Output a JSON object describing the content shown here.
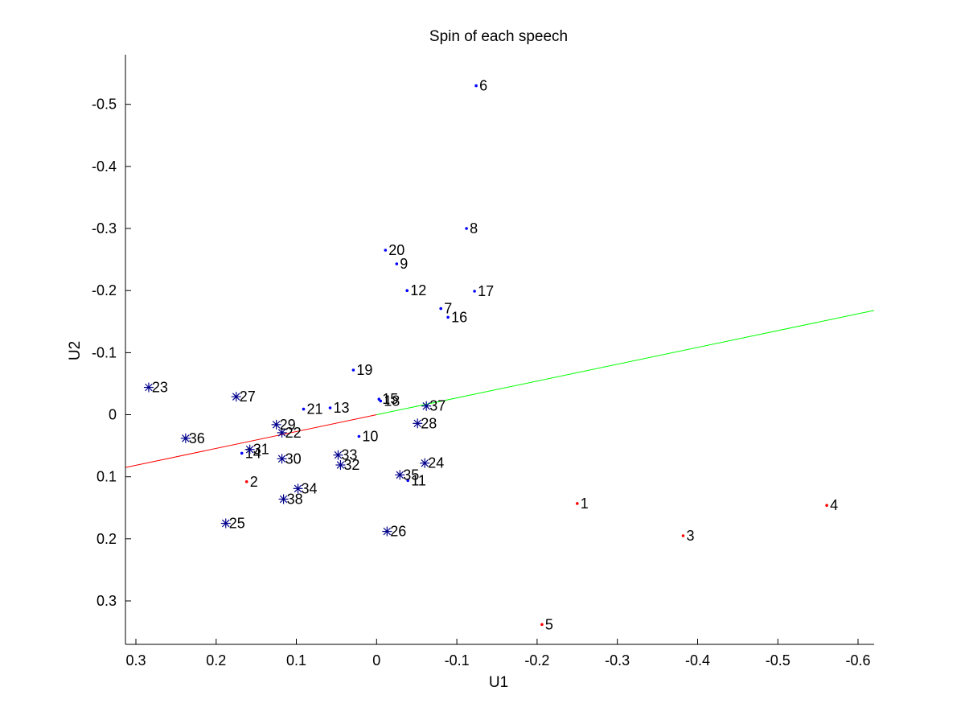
{
  "chart_data": {
    "type": "scatter",
    "title": "Spin of each speech",
    "xlabel": "U1",
    "ylabel": "U2",
    "x_reversed": true,
    "y_reversed": true,
    "xlim": [
      -0.62,
      0.313
    ],
    "ylim": [
      -0.58,
      0.37
    ],
    "xticks": [
      0.3,
      0.2,
      0.1,
      0,
      -0.1,
      -0.2,
      -0.3,
      -0.4,
      -0.5,
      -0.6
    ],
    "xtick_labels": [
      "0.3",
      "0.2",
      "0.1",
      "0",
      "-0.1",
      "-0.2",
      "-0.3",
      "-0.4",
      "-0.5",
      "-0.6"
    ],
    "yticks": [
      -0.5,
      -0.4,
      -0.3,
      -0.2,
      -0.1,
      0,
      0.1,
      0.2,
      0.3
    ],
    "ytick_labels": [
      "-0.5",
      "-0.4",
      "-0.3",
      "-0.2",
      "-0.1",
      "0",
      "0.1",
      "0.2",
      "0.3"
    ],
    "grid": false,
    "colors": {
      "red": "#ff0000",
      "blue": "#0000ff",
      "star": "#00008b",
      "green_line": "#00ff00",
      "red_line": "#ff0000",
      "axis": "#000000"
    },
    "points": [
      {
        "label": "1",
        "x": -0.25,
        "y": 0.143,
        "marker": "dot",
        "color": "red"
      },
      {
        "label": "2",
        "x": 0.162,
        "y": 0.108,
        "marker": "dot",
        "color": "red"
      },
      {
        "label": "3",
        "x": -0.382,
        "y": 0.195,
        "marker": "dot",
        "color": "red"
      },
      {
        "label": "4",
        "x": -0.561,
        "y": 0.146,
        "marker": "dot",
        "color": "red"
      },
      {
        "label": "5",
        "x": -0.206,
        "y": 0.338,
        "marker": "dot",
        "color": "red"
      },
      {
        "label": "6",
        "x": -0.124,
        "y": -0.53,
        "marker": "dot",
        "color": "blue"
      },
      {
        "label": "7",
        "x": -0.08,
        "y": -0.171,
        "marker": "dot",
        "color": "blue"
      },
      {
        "label": "8",
        "x": -0.112,
        "y": -0.3,
        "marker": "dot",
        "color": "blue"
      },
      {
        "label": "9",
        "x": -0.025,
        "y": -0.243,
        "marker": "dot",
        "color": "blue"
      },
      {
        "label": "10",
        "x": 0.022,
        "y": 0.035,
        "marker": "dot",
        "color": "blue"
      },
      {
        "label": "11",
        "x": -0.039,
        "y": 0.106,
        "marker": "dot",
        "color": "blue"
      },
      {
        "label": "12",
        "x": -0.038,
        "y": -0.2,
        "marker": "dot",
        "color": "blue"
      },
      {
        "label": "13",
        "x": 0.058,
        "y": -0.011,
        "marker": "dot",
        "color": "blue"
      },
      {
        "label": "14",
        "x": 0.168,
        "y": 0.062,
        "marker": "dot",
        "color": "blue"
      },
      {
        "label": "15",
        "x": -0.003,
        "y": -0.025,
        "marker": "dot",
        "color": "blue"
      },
      {
        "label": "16",
        "x": -0.089,
        "y": -0.157,
        "marker": "dot",
        "color": "blue"
      },
      {
        "label": "17",
        "x": -0.122,
        "y": -0.199,
        "marker": "dot",
        "color": "blue"
      },
      {
        "label": "18",
        "x": -0.005,
        "y": -0.022,
        "marker": "dot",
        "color": "blue"
      },
      {
        "label": "19",
        "x": 0.029,
        "y": -0.072,
        "marker": "dot",
        "color": "blue"
      },
      {
        "label": "20",
        "x": -0.011,
        "y": -0.265,
        "marker": "dot",
        "color": "blue"
      },
      {
        "label": "21",
        "x": 0.091,
        "y": -0.009,
        "marker": "dot",
        "color": "blue"
      },
      {
        "label": "22",
        "x": 0.118,
        "y": 0.029,
        "marker": "star",
        "color": "star"
      },
      {
        "label": "23",
        "x": 0.284,
        "y": -0.044,
        "marker": "star",
        "color": "star"
      },
      {
        "label": "24",
        "x": -0.06,
        "y": 0.078,
        "marker": "star",
        "color": "star"
      },
      {
        "label": "25",
        "x": 0.188,
        "y": 0.175,
        "marker": "star",
        "color": "star"
      },
      {
        "label": "26",
        "x": -0.013,
        "y": 0.188,
        "marker": "star",
        "color": "star"
      },
      {
        "label": "27",
        "x": 0.175,
        "y": -0.029,
        "marker": "star",
        "color": "star"
      },
      {
        "label": "28",
        "x": -0.051,
        "y": 0.014,
        "marker": "star",
        "color": "star"
      },
      {
        "label": "29",
        "x": 0.125,
        "y": 0.016,
        "marker": "star",
        "color": "star"
      },
      {
        "label": "30",
        "x": 0.118,
        "y": 0.071,
        "marker": "star",
        "color": "star"
      },
      {
        "label": "31",
        "x": 0.158,
        "y": 0.056,
        "marker": "star",
        "color": "star"
      },
      {
        "label": "32",
        "x": 0.045,
        "y": 0.081,
        "marker": "star",
        "color": "star"
      },
      {
        "label": "33",
        "x": 0.048,
        "y": 0.065,
        "marker": "star",
        "color": "star"
      },
      {
        "label": "34",
        "x": 0.098,
        "y": 0.119,
        "marker": "star",
        "color": "star"
      },
      {
        "label": "35",
        "x": -0.029,
        "y": 0.097,
        "marker": "star",
        "color": "star"
      },
      {
        "label": "36",
        "x": 0.238,
        "y": 0.038,
        "marker": "star",
        "color": "star"
      },
      {
        "label": "37",
        "x": -0.062,
        "y": -0.014,
        "marker": "star",
        "color": "star"
      },
      {
        "label": "38",
        "x": 0.116,
        "y": 0.136,
        "marker": "star",
        "color": "star"
      }
    ],
    "lines": [
      {
        "color": "red_line",
        "x": [
          0.313,
          0
        ],
        "y": [
          0.085,
          0
        ]
      },
      {
        "color": "green_line",
        "x": [
          0,
          -0.62
        ],
        "y": [
          0,
          -0.168
        ]
      }
    ]
  }
}
